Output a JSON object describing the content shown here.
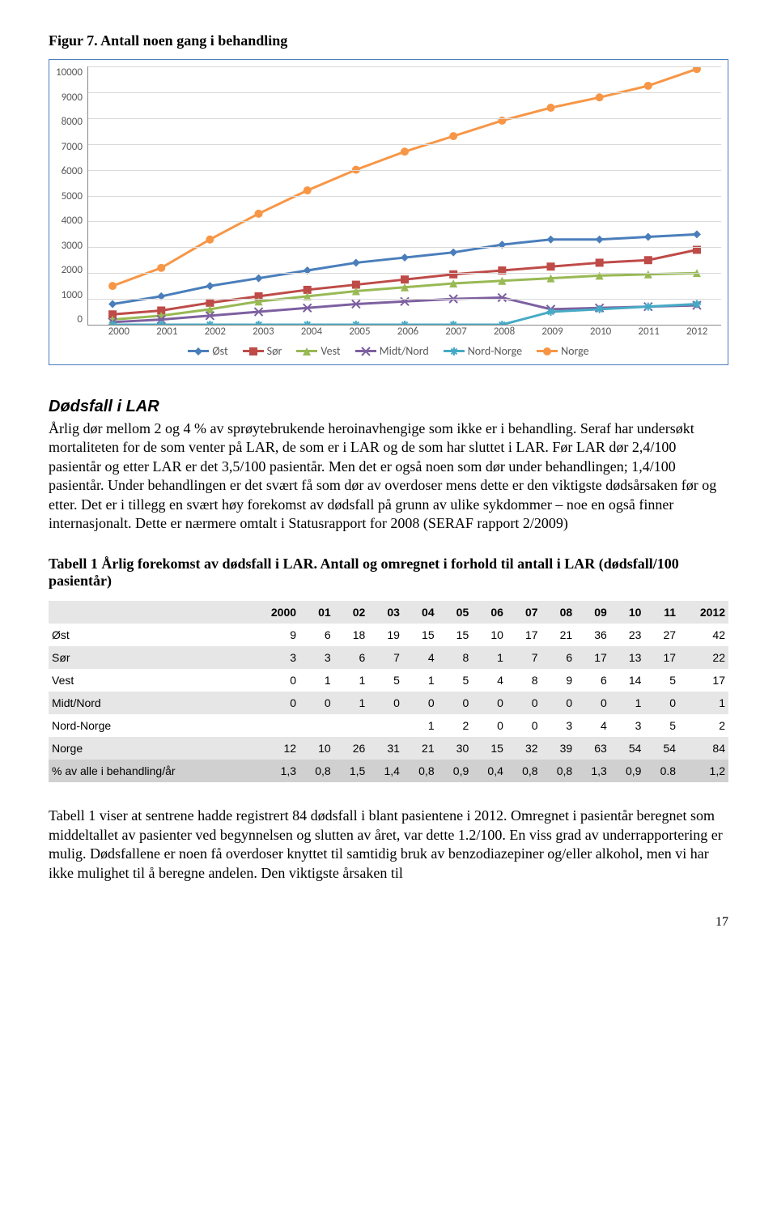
{
  "figure_title": "Figur 7. Antall noen gang i behandling",
  "chart": {
    "type": "line",
    "ylim": [
      0,
      10000
    ],
    "ytick_step": 1000,
    "y_ticks": [
      "10000",
      "9000",
      "8000",
      "7000",
      "6000",
      "5000",
      "4000",
      "3000",
      "2000",
      "1000",
      "0"
    ],
    "x_labels": [
      "2000",
      "2001",
      "2002",
      "2003",
      "2004",
      "2005",
      "2006",
      "2007",
      "2008",
      "2009",
      "2010",
      "2011",
      "2012"
    ],
    "grid_color": "#d9d9d9",
    "axis_color": "#888888",
    "tick_fontsize": 13,
    "tick_color": "#595959",
    "line_width": 3,
    "marker_size": 5,
    "series": [
      {
        "name": "Øst",
        "color": "#4a7ebb",
        "marker": "diamond",
        "values": [
          800,
          1100,
          1500,
          1800,
          2100,
          2400,
          2600,
          2800,
          3100,
          3300,
          3300,
          3400,
          3500
        ]
      },
      {
        "name": "Sør",
        "color": "#be4b48",
        "marker": "square",
        "values": [
          400,
          550,
          850,
          1100,
          1350,
          1550,
          1750,
          1950,
          2100,
          2250,
          2400,
          2500,
          2900
        ]
      },
      {
        "name": "Vest",
        "color": "#98b954",
        "marker": "triangle",
        "values": [
          200,
          350,
          600,
          900,
          1100,
          1300,
          1450,
          1600,
          1700,
          1800,
          1900,
          1950,
          2000
        ]
      },
      {
        "name": "Midt/Nord",
        "color": "#7d60a0",
        "marker": "x",
        "values": [
          100,
          200,
          350,
          500,
          650,
          800,
          900,
          1000,
          1050,
          600,
          650,
          700,
          750
        ]
      },
      {
        "name": "Nord-Norge",
        "color": "#46aac5",
        "marker": "star",
        "values": [
          0,
          0,
          0,
          0,
          0,
          0,
          0,
          0,
          0,
          500,
          600,
          700,
          800
        ]
      },
      {
        "name": "Norge",
        "color": "#f79646",
        "marker": "circle",
        "values": [
          1500,
          2200,
          3300,
          4300,
          5200,
          6000,
          6700,
          7300,
          7900,
          8400,
          8800,
          9250,
          9900
        ]
      }
    ]
  },
  "section_heading": "Dødsfall i LAR",
  "paragraph1": "Årlig dør mellom 2 og 4 % av sprøytebrukende heroinavhengige som ikke er i behandling. Seraf har undersøkt mortaliteten for de som venter på LAR, de som er i LAR og de som har sluttet i LAR. Før LAR dør 2,4/100 pasientår og etter LAR er det 3,5/100 pasientår. Men det er også noen som dør under behandlingen; 1,4/100 pasientår. Under behandlingen er det svært få som dør av overdoser mens dette er den viktigste dødsårsaken før og etter. Det er i tillegg en svært høy forekomst av dødsfall på grunn av ulike sykdommer – noe en også finner internasjonalt. Dette er nærmere omtalt i Statusrapport for 2008 (SERAF rapport 2/2009)",
  "table_title": "Tabell 1 Årlig forekomst av dødsfall i LAR. Antall og omregnet i forhold til antall i LAR (dødsfall/100 pasientår)",
  "table": {
    "columns": [
      "",
      "2000",
      "01",
      "02",
      "03",
      "04",
      "05",
      "06",
      "07",
      "08",
      "09",
      "10",
      "11",
      "2012"
    ],
    "rows": [
      {
        "label": "Øst",
        "cells": [
          "9",
          "6",
          "18",
          "19",
          "15",
          "15",
          "10",
          "17",
          "21",
          "36",
          "23",
          "27",
          "42"
        ],
        "band": false
      },
      {
        "label": "Sør",
        "cells": [
          "3",
          "3",
          "6",
          "7",
          "4",
          "8",
          "1",
          "7",
          "6",
          "17",
          "13",
          "17",
          "22"
        ],
        "band": true
      },
      {
        "label": "Vest",
        "cells": [
          "0",
          "1",
          "1",
          "5",
          "1",
          "5",
          "4",
          "8",
          "9",
          "6",
          "14",
          "5",
          "17"
        ],
        "band": false
      },
      {
        "label": "Midt/Nord",
        "cells": [
          "0",
          "0",
          "1",
          "0",
          "0",
          "0",
          "0",
          "0",
          "0",
          "0",
          "1",
          "0",
          "1"
        ],
        "band": true
      },
      {
        "label": "Nord-Norge",
        "cells": [
          "",
          "",
          "",
          "",
          "1",
          "2",
          "0",
          "0",
          "3",
          "4",
          "3",
          "5",
          "2"
        ],
        "band": false
      },
      {
        "label": "Norge",
        "cells": [
          "12",
          "10",
          "26",
          "31",
          "21",
          "30",
          "15",
          "32",
          "39",
          "63",
          "54",
          "54",
          "84"
        ],
        "band": true
      },
      {
        "label": "% av alle i behandling/år",
        "cells": [
          "1,3",
          "0,8",
          "1,5",
          "1,4",
          "0,8",
          "0,9",
          "0,4",
          "0,8",
          "0,8",
          "1,3",
          "0,9",
          "0.8",
          "1,2"
        ],
        "band": "last"
      }
    ]
  },
  "paragraph2": "Tabell 1 viser at sentrene hadde registrert 84 dødsfall i blant pasientene i 2012. Omregnet i pasientår beregnet som middeltallet av pasienter ved begynnelsen og slutten av året, var dette 1.2/100.  En viss grad av underrapportering er mulig. Dødsfallene er noen få overdoser knyttet til samtidig bruk av benzodiazepiner og/eller alkohol, men vi har ikke mulighet til å beregne andelen. Den viktigste årsaken til",
  "page_number": "17"
}
